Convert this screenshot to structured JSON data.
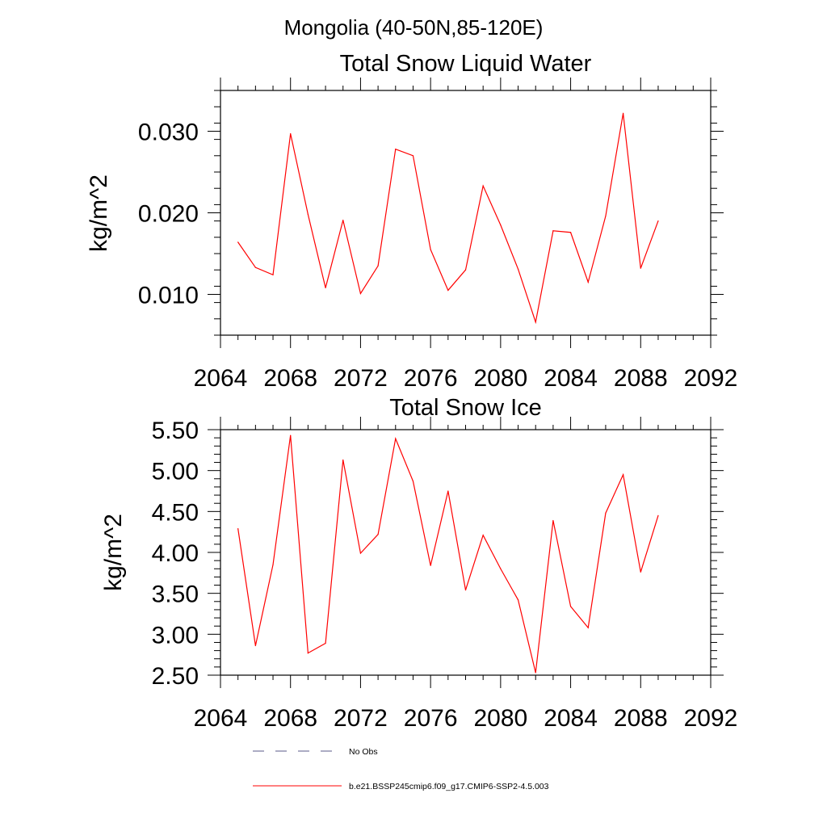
{
  "figure_title": "Mongolia (40-50N,85-120E)",
  "legend": {
    "entries": [
      {
        "label": "No Obs",
        "style": "dashed",
        "color": "#5a5a8a"
      },
      {
        "label": "b.e21.BSSP245cmip6.f09_g17.CMIP6-SSP2-4.5.003",
        "style": "solid",
        "color": "#ff0000"
      }
    ]
  },
  "chart_data": [
    {
      "type": "line",
      "title": "Total Snow Liquid Water",
      "xlabel": "",
      "ylabel": "kg/m^2",
      "xlim": [
        2064,
        2092
      ],
      "ylim": [
        0.005,
        0.035
      ],
      "xticks": [
        2064,
        2068,
        2072,
        2076,
        2080,
        2084,
        2088,
        2092
      ],
      "xtick_labels": [
        "2064",
        "2068",
        "2072",
        "2076",
        "2080",
        "2084",
        "2088",
        "2092"
      ],
      "yticks": [
        0.01,
        0.02,
        0.03
      ],
      "ytick_labels": [
        "0.010",
        "0.020",
        "0.030"
      ],
      "grid": false,
      "x": [
        2065,
        2066,
        2067,
        2068,
        2069,
        2070,
        2071,
        2072,
        2073,
        2074,
        2075,
        2076,
        2077,
        2078,
        2079,
        2080,
        2081,
        2082,
        2083,
        2084,
        2085,
        2086,
        2087,
        2088,
        2089
      ],
      "series": [
        {
          "name": "b.e21.BSSP245cmip6.f09_g17.CMIP6-SSP2-4.5.003",
          "color": "#ff0000",
          "values": [
            0.0164,
            0.0133,
            0.0124,
            0.0297,
            0.0198,
            0.0108,
            0.0191,
            0.0101,
            0.0135,
            0.0278,
            0.027,
            0.0155,
            0.0105,
            0.013,
            0.0233,
            0.0185,
            0.0131,
            0.0066,
            0.0178,
            0.0176,
            0.0115,
            0.0196,
            0.0322,
            0.0132,
            0.019
          ]
        }
      ]
    },
    {
      "type": "line",
      "title": "Total Snow Ice",
      "xlabel": "",
      "ylabel": "kg/m^2",
      "xlim": [
        2064,
        2092
      ],
      "ylim": [
        2.5,
        5.5
      ],
      "xticks": [
        2064,
        2068,
        2072,
        2076,
        2080,
        2084,
        2088,
        2092
      ],
      "xtick_labels": [
        "2064",
        "2068",
        "2072",
        "2076",
        "2080",
        "2084",
        "2088",
        "2092"
      ],
      "yticks": [
        2.5,
        3.0,
        3.5,
        4.0,
        4.5,
        5.0,
        5.5
      ],
      "ytick_labels": [
        "2.50",
        "3.00",
        "3.50",
        "4.00",
        "4.50",
        "5.00",
        "5.50"
      ],
      "grid": false,
      "x": [
        2065,
        2066,
        2067,
        2068,
        2069,
        2070,
        2071,
        2072,
        2073,
        2074,
        2075,
        2076,
        2077,
        2078,
        2079,
        2080,
        2081,
        2082,
        2083,
        2084,
        2085,
        2086,
        2087,
        2088,
        2089
      ],
      "series": [
        {
          "name": "b.e21.BSSP245cmip6.f09_g17.CMIP6-SSP2-4.5.003",
          "color": "#ff0000",
          "values": [
            4.29,
            2.86,
            3.85,
            5.43,
            2.77,
            2.89,
            5.13,
            3.99,
            4.22,
            5.39,
            4.87,
            3.84,
            4.75,
            3.54,
            4.21,
            3.8,
            3.42,
            2.53,
            4.39,
            3.34,
            3.08,
            4.48,
            4.95,
            3.76,
            4.45
          ]
        }
      ]
    }
  ]
}
